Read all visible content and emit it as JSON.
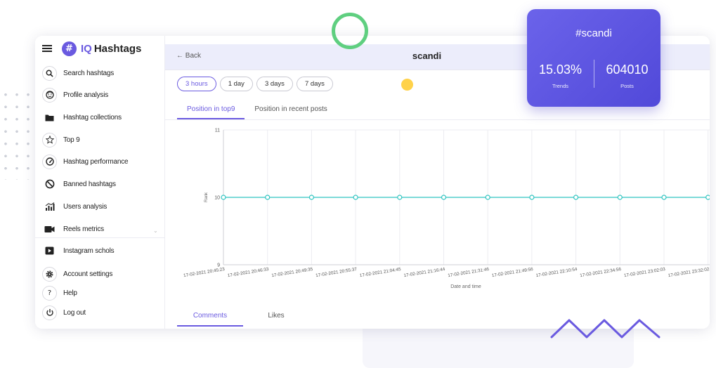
{
  "brand": {
    "prefix": "IQ",
    "name": "Hashtags",
    "logo_glyph": "#",
    "accent": "#6a5ae0"
  },
  "sidebar": {
    "items": [
      {
        "key": "search",
        "label": "Search hashtags",
        "icon": "search-icon"
      },
      {
        "key": "profile",
        "label": "Profile analysis",
        "icon": "face-icon"
      },
      {
        "key": "collections",
        "label": "Hashtag collections",
        "icon": "folder-icon"
      },
      {
        "key": "top9",
        "label": "Top 9",
        "icon": "star-icon"
      },
      {
        "key": "performance",
        "label": "Hashtag performance",
        "icon": "gauge-icon"
      },
      {
        "key": "banned",
        "label": "Banned hashtags",
        "icon": "block-icon"
      },
      {
        "key": "users",
        "label": "Users analysis",
        "icon": "bar-chart-icon"
      },
      {
        "key": "reels",
        "label": "Reels metrics",
        "icon": "video-icon"
      },
      {
        "key": "schools",
        "label": "Instagram schols",
        "icon": "play-icon"
      },
      {
        "key": "account",
        "label": "Account settings",
        "icon": "gear-icon"
      },
      {
        "key": "help",
        "label": "Help",
        "icon": "question-icon"
      },
      {
        "key": "logout",
        "label": "Log out",
        "icon": "power-icon"
      }
    ]
  },
  "topbar": {
    "back_label": "Back",
    "title": "scandi"
  },
  "ranges": [
    {
      "label": "3 hours",
      "active": true
    },
    {
      "label": "1 day",
      "active": false
    },
    {
      "label": "3 days",
      "active": false
    },
    {
      "label": "7 days",
      "active": false
    }
  ],
  "tabs": [
    {
      "label": "Position in top9",
      "active": true
    },
    {
      "label": "Position in recent posts",
      "active": false
    }
  ],
  "bottom_tabs": [
    {
      "label": "Comments",
      "active": true
    },
    {
      "label": "Likes",
      "active": false
    }
  ],
  "card": {
    "hashtag": "#scandi",
    "trend_value": "15.03%",
    "trend_label": "Trends",
    "posts_value": "604010",
    "posts_label": "Posts"
  },
  "chart_data": {
    "type": "line",
    "xlabel": "Date and time",
    "ylabel": "Rank",
    "ylim": [
      9,
      11
    ],
    "yticks": [
      "9",
      "10",
      "11"
    ],
    "categories": [
      "17-02-2021 20:45:23",
      "17-02-2021 20:46:33",
      "17-02-2021 20:49:35",
      "17-02-2021 20:55:37",
      "17-02-2021 21:04:45",
      "17-02-2021 21:16:44",
      "17-02-2021 21:31:46",
      "17-02-2021 21:49:56",
      "17-02-2021 22:10:54",
      "17-02-2021 22:34:56",
      "17-02-2021 23:02:03",
      "17-02-2021 23:32:02"
    ],
    "series": [
      {
        "values": [
          10,
          10,
          10,
          10,
          10,
          10,
          10,
          10,
          10,
          10,
          10,
          10
        ]
      }
    ],
    "line_color": "#2ec4c0",
    "grid": true,
    "legend": "none"
  }
}
